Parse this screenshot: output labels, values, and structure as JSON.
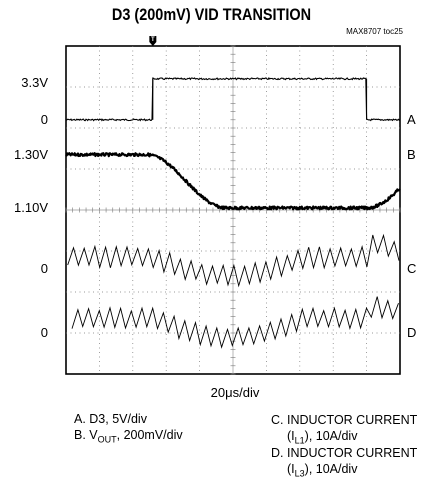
{
  "chart_data": {
    "type": "line",
    "title": "D3 (200mV) VID TRANSITION",
    "figure_id": "MAX8707 toc25",
    "x_scale": "20μs/div",
    "trigger_marker": "T",
    "divisions": {
      "x": 10,
      "y": 8
    },
    "grid": true,
    "left_labels": [
      {
        "text": "3.3V",
        "division_y": 0.9
      },
      {
        "text": "0",
        "division_y": 1.8
      },
      {
        "text": "1.30V",
        "division_y": 2.65
      },
      {
        "text": "1.10V",
        "division_y": 3.95
      },
      {
        "text": "0",
        "division_y": 5.45
      },
      {
        "text": "0",
        "division_y": 7.0
      }
    ],
    "series": [
      {
        "name": "A",
        "label": "A. D3, 5V/div",
        "points": [
          [
            0,
            0
          ],
          [
            2.6,
            0
          ],
          [
            2.6,
            1
          ],
          [
            9.0,
            1
          ],
          [
            9.0,
            0
          ],
          [
            10,
            0
          ]
        ],
        "zero_division": 1.8,
        "div_per_unit": -1.0,
        "noise": 0.02,
        "stroke": 1.1
      },
      {
        "name": "B",
        "label_prefix": "B. V",
        "label_sub": "OUT",
        "label_suffix": ", 200mV/div",
        "points": [
          [
            0,
            1.3
          ],
          [
            2.4,
            1.3
          ],
          [
            4.8,
            1.1
          ],
          [
            9.0,
            1.1
          ],
          [
            11.4,
            1.3
          ],
          [
            12,
            1.3
          ]
        ],
        "zero_division": 2.65,
        "ref_value": 1.3,
        "div_per_volt": 6.5,
        "noise": 0.035,
        "stroke": 2.2,
        "smooth": true
      },
      {
        "name": "C",
        "label_lines": [
          {
            "text": "C. INDUCTOR CURRENT"
          },
          {
            "prefix": "(I",
            "sub": "L1",
            "suffix": "), 10A/div"
          }
        ],
        "baseline_division": 5.15,
        "ripple_division": 0.45,
        "ripple_period_div": 0.32,
        "dip": {
          "start": 2.6,
          "end": 9.0,
          "depth": 0.45
        },
        "bump": {
          "at": 9.0,
          "height": 0.5
        },
        "stroke": 0.9
      },
      {
        "name": "D",
        "label_lines": [
          {
            "text": "D. INDUCTOR CURRENT"
          },
          {
            "prefix": "(I",
            "sub": "L3",
            "suffix": "), 10A/div"
          }
        ],
        "baseline_division": 6.65,
        "ripple_division": 0.45,
        "ripple_period_div": 0.32,
        "dip": {
          "start": 2.6,
          "end": 9.0,
          "depth": 0.45
        },
        "bump": {
          "at": 9.0,
          "height": 0.5
        },
        "stroke": 0.9
      }
    ],
    "right_labels": [
      {
        "text": "A",
        "division_y": 1.8
      },
      {
        "text": "B",
        "division_y": 2.65
      },
      {
        "text": "C",
        "division_y": 5.45
      },
      {
        "text": "D",
        "division_y": 7.0
      }
    ]
  }
}
